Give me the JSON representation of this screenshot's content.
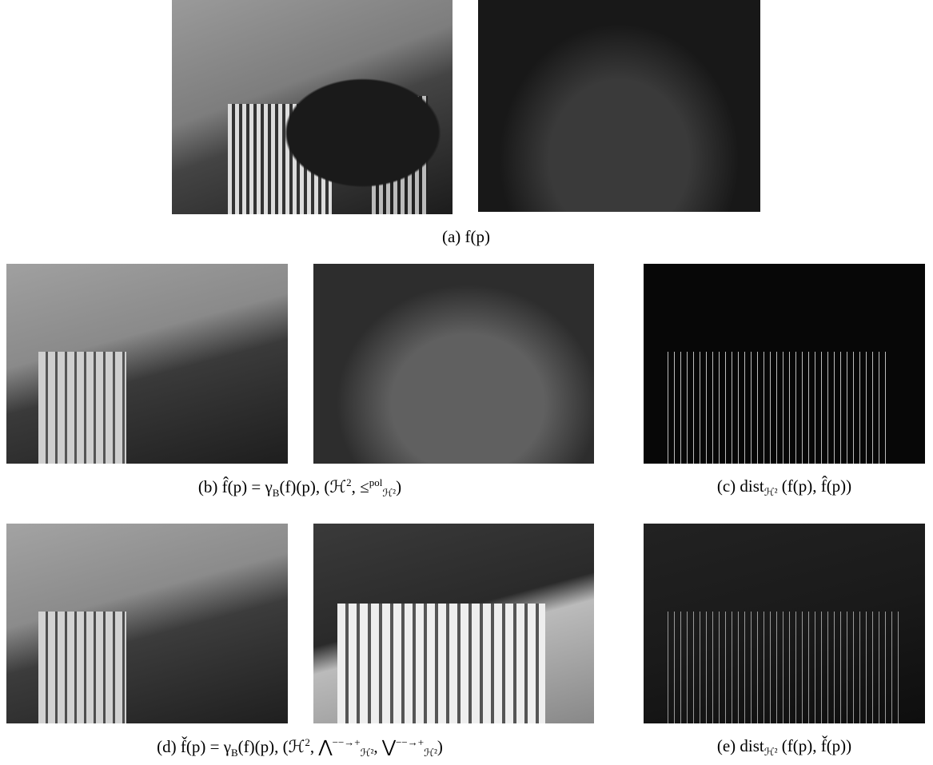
{
  "figure": {
    "captions": [
      {
        "segments": [
          {
            "text": "(a) f(p)"
          }
        ]
      },
      {
        "segments": [
          {
            "text": "(b) f̂(p) = γ"
          },
          {
            "text": "B",
            "pos": "sub"
          },
          {
            "text": "(f)(p), (ℋ"
          },
          {
            "text": "2",
            "pos": "sup"
          },
          {
            "text": ", ≤"
          },
          {
            "text": "pol",
            "pos": "sup"
          },
          {
            "text": "ℋ²",
            "pos": "sub"
          },
          {
            "text": ")"
          }
        ]
      },
      {
        "segments": [
          {
            "text": "(c) dist"
          },
          {
            "text": "ℋ²",
            "pos": "sub"
          },
          {
            "text": " (f(p), f̂(p))"
          }
        ]
      },
      {
        "segments": [
          {
            "text": "(d) f̌(p) = γ"
          },
          {
            "text": "B",
            "pos": "sub"
          },
          {
            "text": "(f)(p), (ℋ"
          },
          {
            "text": "2",
            "pos": "sup"
          },
          {
            "text": ", ⋀"
          },
          {
            "text": "−−→+",
            "pos": "sup"
          },
          {
            "text": "ℋ²",
            "pos": "sub"
          },
          {
            "text": ", ⋁"
          },
          {
            "text": "−−→+",
            "pos": "sup"
          },
          {
            "text": "ℋ²",
            "pos": "sub"
          },
          {
            "text": ")"
          }
        ]
      },
      {
        "segments": [
          {
            "text": "(e) dist"
          },
          {
            "text": "ℋ²",
            "pos": "sub"
          },
          {
            "text": " (f(p), f̌(p))"
          }
        ]
      }
    ]
  }
}
